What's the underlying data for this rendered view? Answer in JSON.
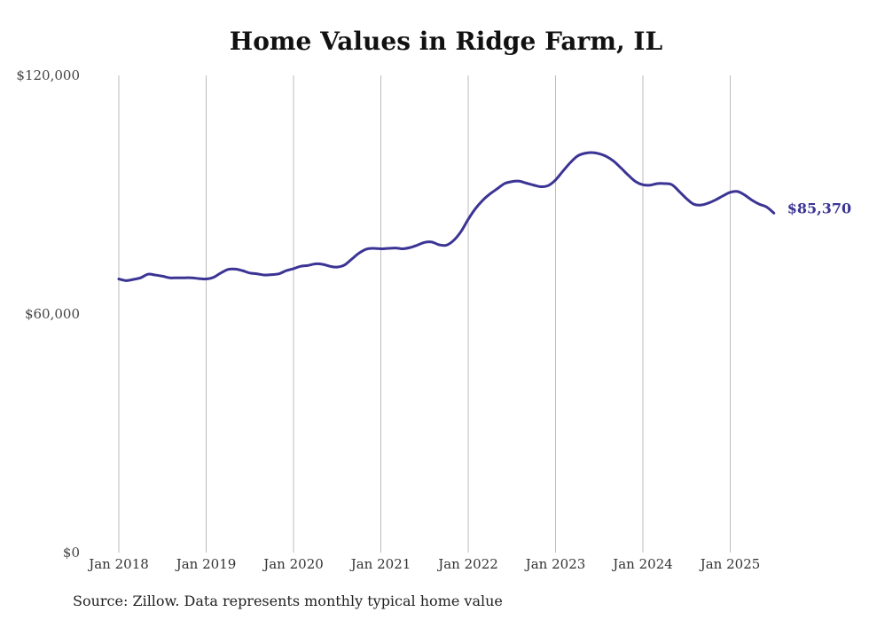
{
  "title": "Home Values in Ridge Farm, IL",
  "source": "Source: Zillow. Data represents monthly typical home value",
  "colors": {
    "line": "#3b3494",
    "grid": "#bbbbbb",
    "text": "#333333"
  },
  "chart_data": {
    "type": "line",
    "title": "Home Values in Ridge Farm, IL",
    "xlabel": "",
    "ylabel": "",
    "ylim": [
      0,
      120000
    ],
    "yticks": [
      0,
      60000,
      120000
    ],
    "ytick_labels": [
      "$0",
      "$60,000",
      "$120,000"
    ],
    "xticks": [
      "2018-01",
      "2019-01",
      "2020-01",
      "2021-01",
      "2022-01",
      "2023-01",
      "2024-01",
      "2025-01"
    ],
    "xtick_labels": [
      "Jan 2018",
      "Jan 2019",
      "Jan 2020",
      "Jan 2021",
      "Jan 2022",
      "Jan 2023",
      "Jan 2024",
      "Jan 2025"
    ],
    "grid": "vertical",
    "legend": "none",
    "end_label": "$85,370",
    "series": [
      {
        "x": [
          "2018-01",
          "2018-02",
          "2018-03",
          "2018-04",
          "2018-05",
          "2018-06",
          "2018-07",
          "2018-08",
          "2018-09",
          "2018-10",
          "2018-11",
          "2018-12",
          "2019-01",
          "2019-02",
          "2019-03",
          "2019-04",
          "2019-05",
          "2019-06",
          "2019-07",
          "2019-08",
          "2019-09",
          "2019-10",
          "2019-11",
          "2019-12",
          "2020-01",
          "2020-02",
          "2020-03",
          "2020-04",
          "2020-05",
          "2020-06",
          "2020-07",
          "2020-08",
          "2020-09",
          "2020-10",
          "2020-11",
          "2020-12",
          "2021-01",
          "2021-02",
          "2021-03",
          "2021-04",
          "2021-05",
          "2021-06",
          "2021-07",
          "2021-08",
          "2021-09",
          "2021-10",
          "2021-11",
          "2021-12",
          "2022-01",
          "2022-02",
          "2022-03",
          "2022-04",
          "2022-05",
          "2022-06",
          "2022-07",
          "2022-08",
          "2022-09",
          "2022-10",
          "2022-11",
          "2022-12",
          "2023-01",
          "2023-02",
          "2023-03",
          "2023-04",
          "2023-05",
          "2023-06",
          "2023-07",
          "2023-08",
          "2023-09",
          "2023-10",
          "2023-11",
          "2023-12",
          "2024-01",
          "2024-02",
          "2024-03",
          "2024-04",
          "2024-05",
          "2024-06",
          "2024-07",
          "2024-08",
          "2024-09",
          "2024-10",
          "2024-11",
          "2024-12",
          "2025-01",
          "2025-02",
          "2025-03",
          "2025-04",
          "2025-05",
          "2025-06",
          "2025-07"
        ],
        "values": [
          68800,
          68400,
          68700,
          69100,
          70000,
          69800,
          69500,
          69100,
          69100,
          69100,
          69100,
          68900,
          68800,
          69200,
          70300,
          71200,
          71300,
          70900,
          70300,
          70100,
          69800,
          69900,
          70100,
          70900,
          71400,
          72000,
          72200,
          72600,
          72500,
          72000,
          71800,
          72300,
          73800,
          75300,
          76300,
          76500,
          76400,
          76500,
          76600,
          76400,
          76700,
          77300,
          78000,
          78100,
          77400,
          77300,
          78500,
          80700,
          83800,
          86500,
          88600,
          90200,
          91500,
          92800,
          93300,
          93400,
          92900,
          92400,
          92000,
          92300,
          93700,
          95900,
          98000,
          99700,
          100400,
          100600,
          100300,
          99600,
          98400,
          96700,
          94900,
          93300,
          92500,
          92400,
          92800,
          92800,
          92500,
          90800,
          89000,
          87600,
          87400,
          87900,
          88700,
          89700,
          90600,
          90800,
          89900,
          88600,
          87600,
          86900,
          85370
        ]
      }
    ]
  }
}
